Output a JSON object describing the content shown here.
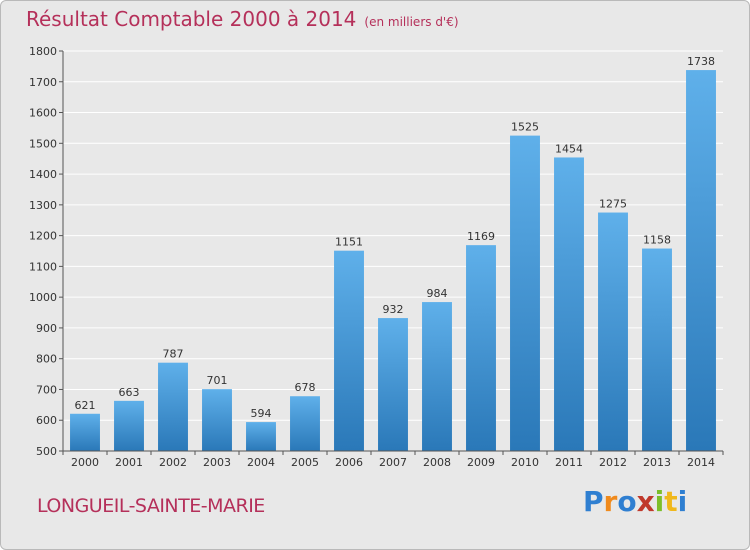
{
  "header": {
    "title": "Résultat Comptable 2000 à 2014",
    "subtitle": "(en milliers d'€)"
  },
  "footer": {
    "town": "LONGUEIL-SAINTE-MARIE",
    "logo_letters": [
      "P",
      "r",
      "o",
      "x",
      "i",
      "t",
      "i"
    ],
    "logo_colors": [
      "#2f7fd1",
      "#f08a1c",
      "#2f7fd1",
      "#c0392b",
      "#7cbf2a",
      "#f0b81c",
      "#2f7fd1"
    ]
  },
  "chart_data": {
    "type": "bar",
    "title": "Résultat Comptable 2000 à 2014",
    "subtitle": "(en milliers d'€)",
    "categories": [
      "2000",
      "2001",
      "2002",
      "2003",
      "2004",
      "2005",
      "2006",
      "2007",
      "2008",
      "2009",
      "2010",
      "2011",
      "2012",
      "2013",
      "2014"
    ],
    "values": [
      621,
      663,
      787,
      701,
      594,
      678,
      1151,
      932,
      984,
      1169,
      1525,
      1454,
      1275,
      1158,
      1738
    ],
    "ylim": [
      500,
      1800
    ],
    "yticks": [
      500,
      600,
      700,
      800,
      900,
      1000,
      1100,
      1200,
      1300,
      1400,
      1500,
      1600,
      1700,
      1800
    ],
    "grid": true,
    "bar_color_top": "#5fb0ea",
    "bar_color_bottom": "#2a78b8",
    "grid_color": "#ffffff"
  }
}
